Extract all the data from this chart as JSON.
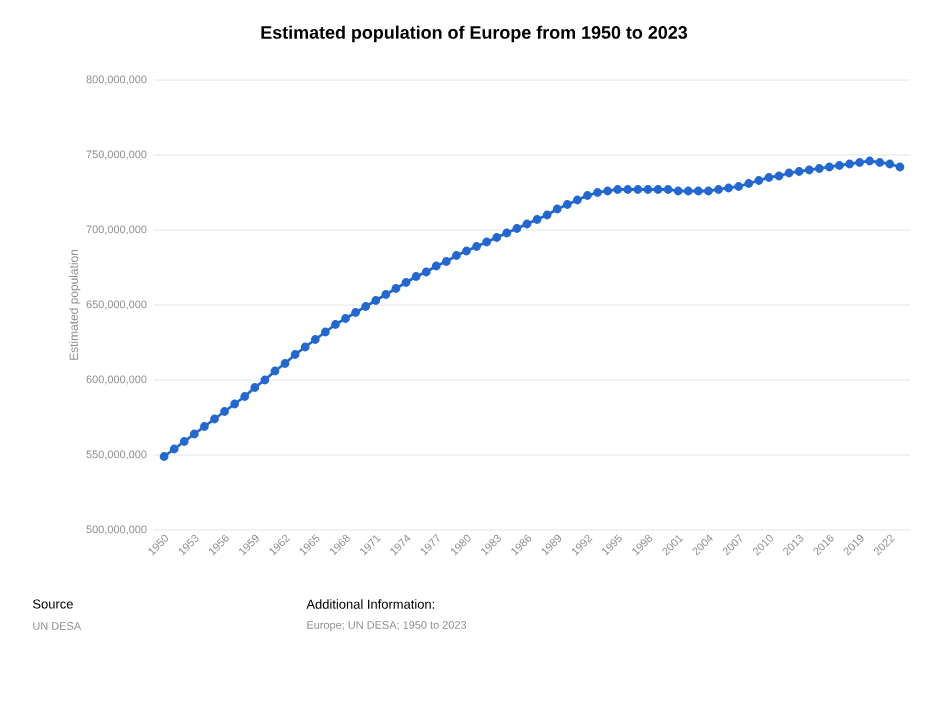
{
  "chart_data": {
    "type": "line",
    "title": "Estimated population of Europe from 1950 to 2023",
    "ylabel": "Estimated population",
    "x": [
      1950,
      1951,
      1952,
      1953,
      1954,
      1955,
      1956,
      1957,
      1958,
      1959,
      1960,
      1961,
      1962,
      1963,
      1964,
      1965,
      1966,
      1967,
      1968,
      1969,
      1970,
      1971,
      1972,
      1973,
      1974,
      1975,
      1976,
      1977,
      1978,
      1979,
      1980,
      1981,
      1982,
      1983,
      1984,
      1985,
      1986,
      1987,
      1988,
      1989,
      1990,
      1991,
      1992,
      1993,
      1994,
      1995,
      1996,
      1997,
      1998,
      1999,
      2000,
      2001,
      2002,
      2003,
      2004,
      2005,
      2006,
      2007,
      2008,
      2009,
      2010,
      2011,
      2012,
      2013,
      2014,
      2015,
      2016,
      2017,
      2018,
      2019,
      2020,
      2021,
      2022,
      2023
    ],
    "series": [
      {
        "color": "#2367d1",
        "values": [
          549000000,
          554000000,
          559000000,
          564000000,
          569000000,
          574000000,
          579000000,
          584000000,
          589000000,
          595000000,
          600000000,
          606000000,
          611000000,
          617000000,
          622000000,
          627000000,
          632000000,
          637000000,
          641000000,
          645000000,
          649000000,
          653000000,
          657000000,
          661000000,
          665000000,
          669000000,
          672000000,
          676000000,
          679000000,
          683000000,
          686000000,
          689000000,
          692000000,
          695000000,
          698000000,
          701000000,
          704000000,
          707000000,
          710000000,
          714000000,
          717000000,
          720000000,
          723000000,
          725000000,
          726000000,
          727000000,
          727000000,
          727000000,
          727000000,
          727000000,
          727000000,
          726000000,
          726000000,
          726000000,
          726000000,
          727000000,
          728000000,
          729000000,
          731000000,
          733000000,
          735000000,
          736000000,
          738000000,
          739000000,
          740000000,
          741000000,
          742000000,
          743000000,
          744000000,
          745000000,
          746000000,
          745000000,
          744000000,
          742000000
        ]
      }
    ],
    "xlim": [
      1949,
      2024
    ],
    "xticks": [
      1950,
      1953,
      1956,
      1959,
      1962,
      1965,
      1968,
      1971,
      1974,
      1977,
      1980,
      1983,
      1986,
      1989,
      1992,
      1995,
      1998,
      2001,
      2004,
      2007,
      2010,
      2013,
      2016,
      2019,
      2022
    ],
    "ylim": [
      500000000,
      800000000
    ],
    "yticks": [
      {
        "value": 500000000,
        "label": "500,000,000"
      },
      {
        "value": 550000000,
        "label": "550,000,000"
      },
      {
        "value": 600000000,
        "label": "600,000,000"
      },
      {
        "value": 650000000,
        "label": "650,000,000"
      },
      {
        "value": 700000000,
        "label": "700,000,000"
      },
      {
        "value": 750000000,
        "label": "750,000,000"
      },
      {
        "value": 800000000,
        "label": "800,000,000"
      }
    ],
    "grid": "y",
    "marker": "circle",
    "line_style": "solid",
    "legend": false,
    "annotations": [
      "Source",
      "UN DESA",
      "Additional Information:",
      "Europe; UN DESA; 1950 to 2023"
    ]
  }
}
